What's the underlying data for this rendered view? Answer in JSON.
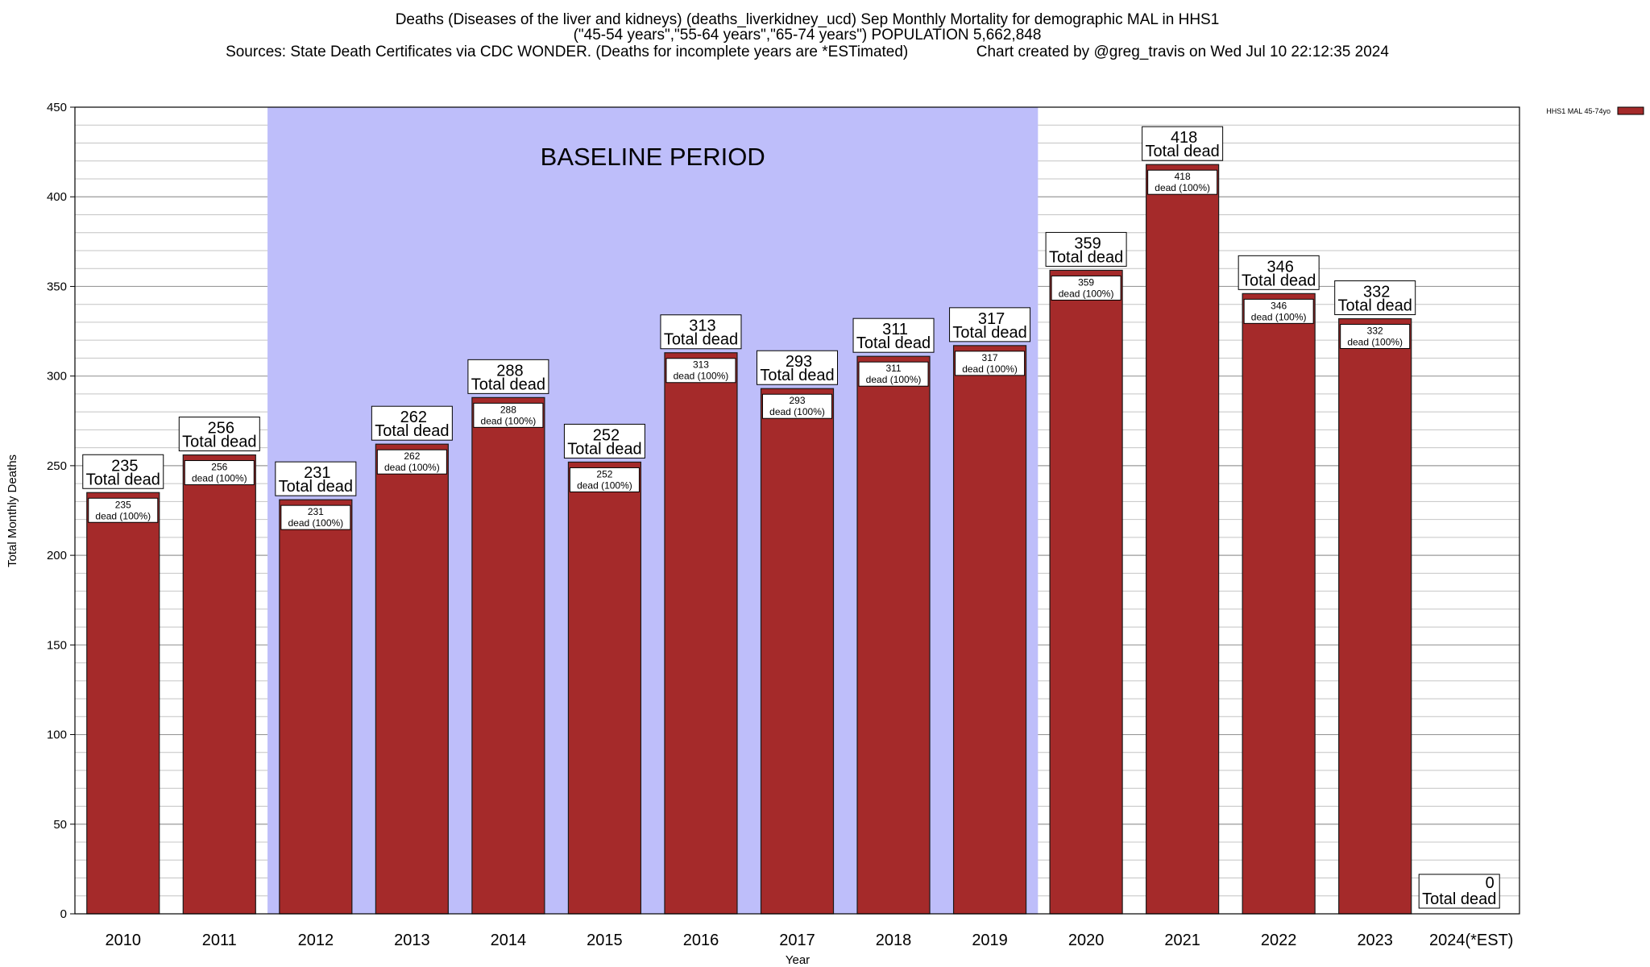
{
  "chart_data": {
    "type": "bar",
    "title_lines": [
      "Deaths (Diseases of the liver and kidneys) (deaths_liverkidney_ucd) Sep Monthly Mortality for demographic MAL in HHS1",
      "(\"45-54 years\",\"55-64 years\",\"65-74 years\") POPULATION 5,662,848",
      "Sources: State Death Certificates via CDC WONDER. (Deaths for incomplete years are *ESTimated)                Chart created by @greg_travis on Wed Jul 10 22:12:35 2024"
    ],
    "xlabel": "Year",
    "ylabel": "Total Monthly Deaths",
    "ylim": [
      0,
      450
    ],
    "ytick_step": 50,
    "yminor_step": 10,
    "categories": [
      "2010",
      "2011",
      "2012",
      "2013",
      "2014",
      "2015",
      "2016",
      "2017",
      "2018",
      "2019",
      "2020",
      "2021",
      "2022",
      "2023",
      "2024(*EST)"
    ],
    "series": [
      {
        "name": "HHS1 MAL 45-74yo",
        "color": "#a52a2a",
        "values": [
          235,
          256,
          231,
          262,
          288,
          252,
          313,
          293,
          311,
          317,
          359,
          418,
          346,
          332,
          0
        ]
      }
    ],
    "total_label_suffix": "Total dead",
    "inner_label_suffix": "dead (100%)",
    "baseline_period": {
      "label": "BASELINE PERIOD",
      "from": "2012",
      "to": "2019",
      "color": "#bebefa"
    },
    "legend_position": "top-right",
    "grid": true
  }
}
